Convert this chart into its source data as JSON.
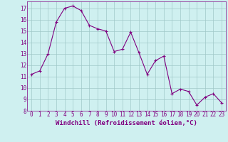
{
  "x": [
    0,
    1,
    2,
    3,
    4,
    5,
    6,
    7,
    8,
    9,
    10,
    11,
    12,
    13,
    14,
    15,
    16,
    17,
    18,
    19,
    20,
    21,
    22,
    23
  ],
  "y": [
    11.2,
    11.5,
    13.0,
    15.8,
    17.0,
    17.2,
    16.8,
    15.5,
    15.2,
    15.0,
    13.2,
    13.4,
    14.9,
    13.1,
    11.2,
    12.4,
    12.8,
    9.5,
    9.9,
    9.7,
    8.5,
    9.2,
    9.5,
    8.7
  ],
  "line_color": "#800080",
  "marker": "+",
  "marker_size": 3,
  "marker_lw": 0.8,
  "bg_color": "#cff0f0",
  "grid_color": "#a0c8c8",
  "xlabel": "Windchill (Refroidissement éolien,°C)",
  "ylim": [
    8,
    17.6
  ],
  "xlim": [
    -0.5,
    23.5
  ],
  "yticks": [
    8,
    9,
    10,
    11,
    12,
    13,
    14,
    15,
    16,
    17
  ],
  "xticks": [
    0,
    1,
    2,
    3,
    4,
    5,
    6,
    7,
    8,
    9,
    10,
    11,
    12,
    13,
    14,
    15,
    16,
    17,
    18,
    19,
    20,
    21,
    22,
    23
  ],
  "axis_color": "#800080",
  "label_fontsize": 6.5,
  "tick_fontsize": 5.5,
  "line_width": 0.8
}
